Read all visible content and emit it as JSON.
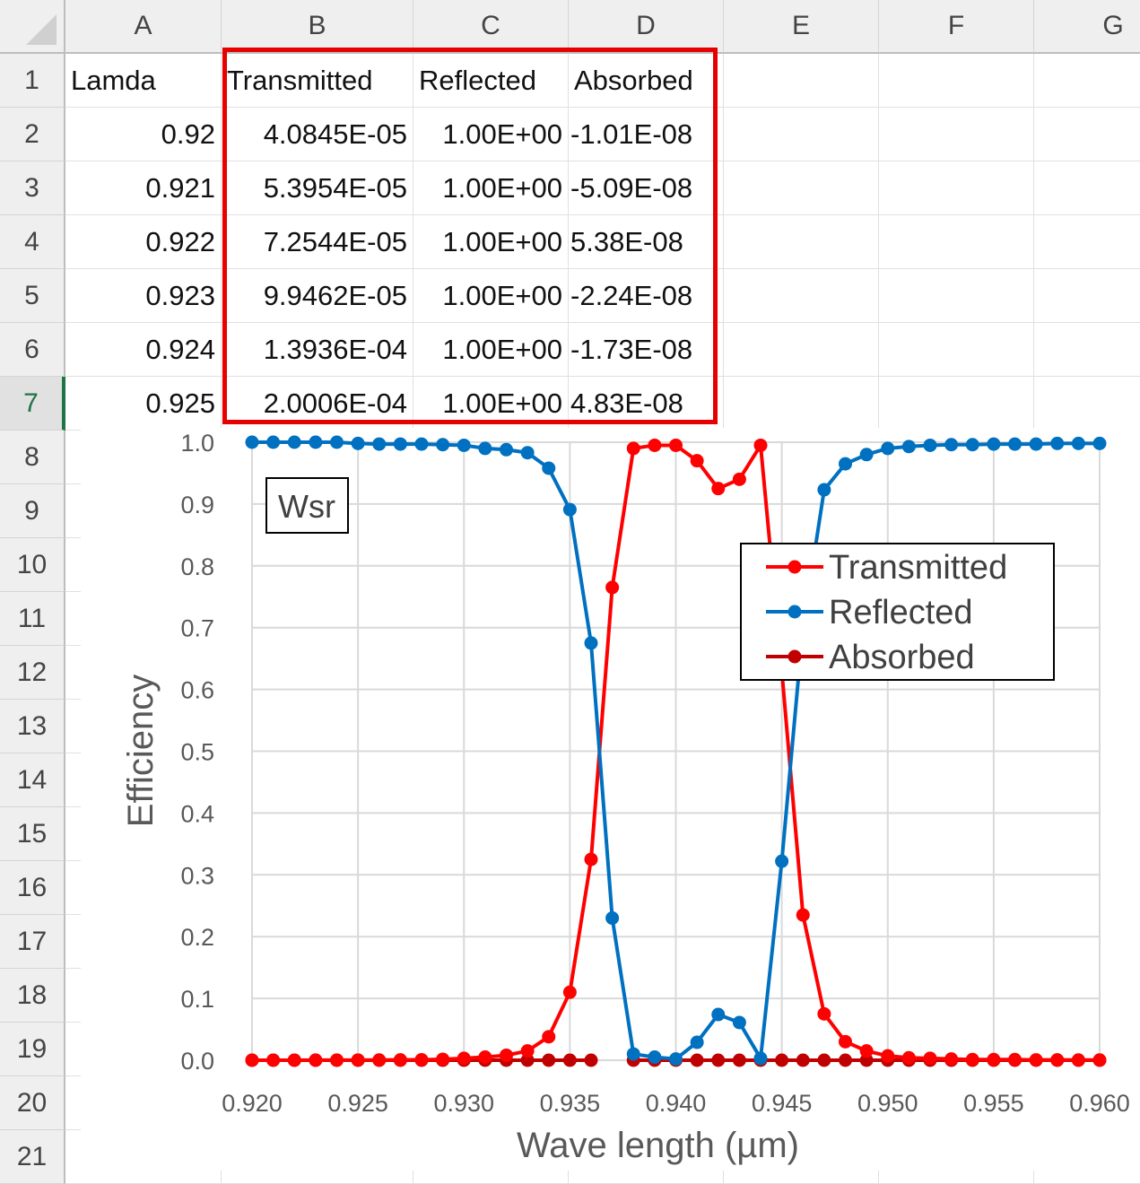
{
  "sheet": {
    "columns": [
      "A",
      "B",
      "C",
      "D",
      "E",
      "F",
      "G"
    ],
    "rows": [
      "1",
      "2",
      "3",
      "4",
      "5",
      "6",
      "7",
      "8",
      "9",
      "10",
      "11",
      "12",
      "13",
      "14",
      "15",
      "16",
      "17",
      "18",
      "19",
      "20",
      "21"
    ],
    "selected_row": "7",
    "cells": [
      [
        "Lamda",
        "Transmitted",
        "Reflected",
        "Absorbed"
      ],
      [
        "0.92",
        "4.0845E-05",
        "1.00E+00",
        "-1.01E-08"
      ],
      [
        "0.921",
        "5.3954E-05",
        "1.00E+00",
        "-5.09E-08"
      ],
      [
        "0.922",
        "7.2544E-05",
        "1.00E+00",
        "5.38E-08"
      ],
      [
        "0.923",
        "9.9462E-05",
        "1.00E+00",
        "-2.24E-08"
      ],
      [
        "0.924",
        "1.3936E-04",
        "1.00E+00",
        "-1.73E-08"
      ],
      [
        "0.925",
        "2.0006E-04",
        "1.00E+00",
        "4.83E-08"
      ]
    ],
    "highlight_color": "#e60000"
  },
  "chart_data": {
    "type": "line",
    "title": "",
    "annotation": "Wsr",
    "xlabel": "Wave length (µm)",
    "ylabel": "Efficiency",
    "xlim": [
      0.92,
      0.96
    ],
    "ylim": [
      0,
      1
    ],
    "xticks": [
      "0.920",
      "0.925",
      "0.930",
      "0.935",
      "0.940",
      "0.945",
      "0.950",
      "0.955",
      "0.960"
    ],
    "yticks": [
      "0.0",
      "0.1",
      "0.2",
      "0.3",
      "0.4",
      "0.5",
      "0.6",
      "0.7",
      "0.8",
      "0.9",
      "1.0"
    ],
    "grid": true,
    "legend_position": "right",
    "x": [
      0.92,
      0.921,
      0.922,
      0.923,
      0.924,
      0.925,
      0.926,
      0.927,
      0.928,
      0.929,
      0.93,
      0.931,
      0.932,
      0.933,
      0.934,
      0.935,
      0.936,
      0.937,
      0.938,
      0.939,
      0.94,
      0.941,
      0.942,
      0.943,
      0.944,
      0.945,
      0.946,
      0.947,
      0.948,
      0.949,
      0.95,
      0.951,
      0.952,
      0.953,
      0.954,
      0.955,
      0.956,
      0.957,
      0.958,
      0.959,
      0.96
    ],
    "series": [
      {
        "name": "Transmitted",
        "color": "#ff0000",
        "values": [
          4e-05,
          5e-05,
          7e-05,
          0.0001,
          0.00014,
          0.0002,
          0.0003,
          0.0005,
          0.0008,
          0.0015,
          0.003,
          0.005,
          0.008,
          0.015,
          0.038,
          0.11,
          0.325,
          0.765,
          0.99,
          0.995,
          0.995,
          0.97,
          0.925,
          0.94,
          0.995,
          0.63,
          0.235,
          0.075,
          0.03,
          0.015,
          0.007,
          0.004,
          0.003,
          0.002,
          0.001,
          0.001,
          0.001,
          0.0005,
          0.0005,
          0.0003,
          0.0003
        ]
      },
      {
        "name": "Reflected",
        "color": "#0070c0",
        "values": [
          1.0,
          1.0,
          1.0,
          1.0,
          1.0,
          0.998,
          0.997,
          0.997,
          0.997,
          0.996,
          0.995,
          0.99,
          0.988,
          0.983,
          0.958,
          0.891,
          0.675,
          0.23,
          0.01,
          0.005,
          0.002,
          0.029,
          0.074,
          0.061,
          0.003,
          0.322,
          0.7,
          0.923,
          0.965,
          0.98,
          0.99,
          0.993,
          0.995,
          0.996,
          0.996,
          0.997,
          0.997,
          0.997,
          0.998,
          0.998,
          0.998
        ]
      },
      {
        "name": "Absorbed",
        "color": "#c00000",
        "values": [
          0,
          0,
          0,
          0,
          0,
          0,
          0,
          0,
          0,
          0,
          0,
          0,
          0,
          0,
          0,
          0,
          0,
          null,
          0,
          0,
          0,
          0,
          0,
          0,
          0,
          0,
          0,
          0,
          0,
          0,
          0,
          0,
          0,
          0,
          0,
          0,
          0,
          0,
          0,
          0,
          0
        ]
      }
    ]
  }
}
